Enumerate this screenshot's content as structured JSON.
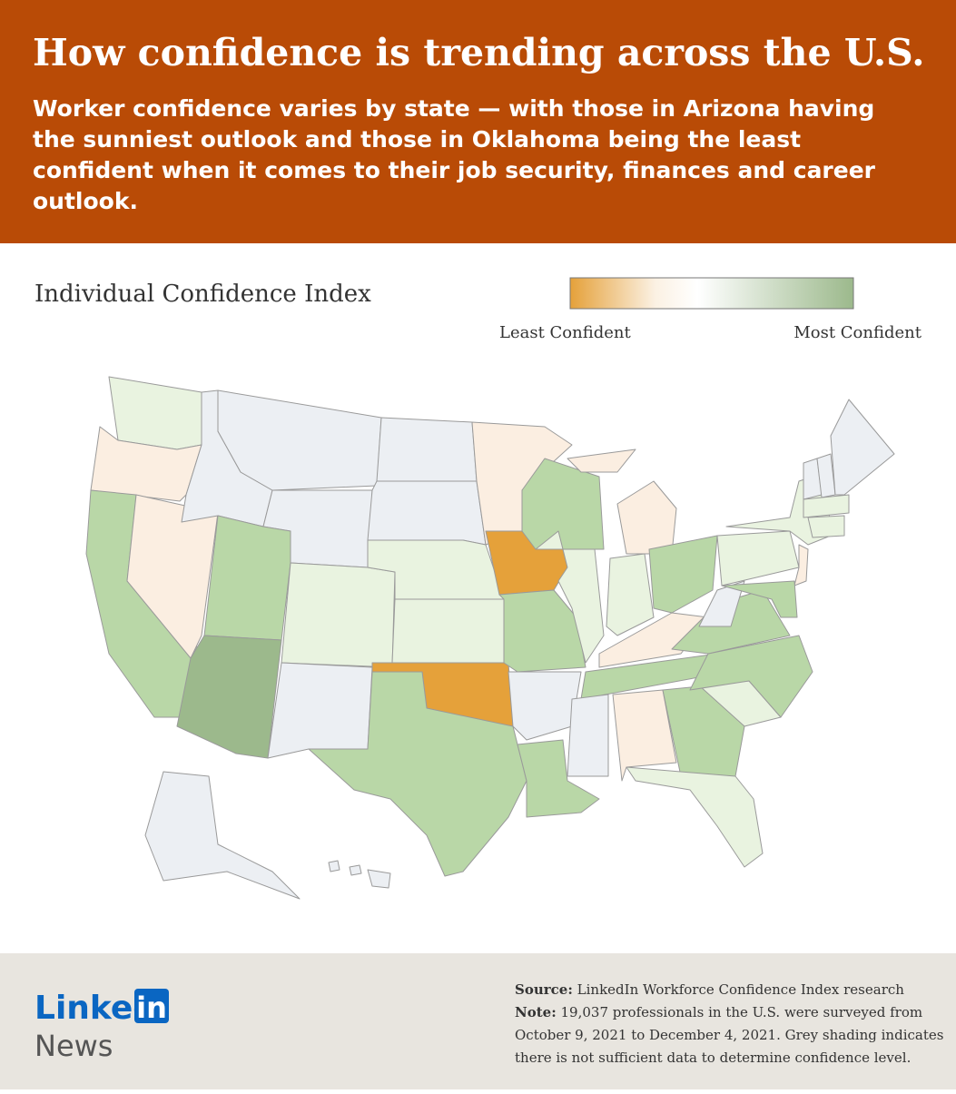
{
  "header": {
    "title": "How confidence is trending across the U.S.",
    "subtitle_lines": [
      "Worker confidence varies by state — with those in Arizona having",
      "the sunniest outlook and those in Oklahoma being the least",
      "confident when it comes to their job security, finances and career",
      "outlook."
    ]
  },
  "legend": {
    "title": "Individual Confidence Index",
    "low_label": "Least Confident",
    "high_label": "Most Confident"
  },
  "footer": {
    "logo_text": "Linked",
    "logo_badge": "in",
    "logo_sub": "News",
    "source_label": "Source:",
    "source_text": "LinkedIn Workforce Confidence Index research",
    "note_label": "Note:",
    "note_lines": [
      "19,037 professionals in the U.S. were surveyed from",
      "October 9, 2021 to December 4, 2021. Grey shading indicates",
      "there is not sufficient data to determine confidence level."
    ]
  }
}
